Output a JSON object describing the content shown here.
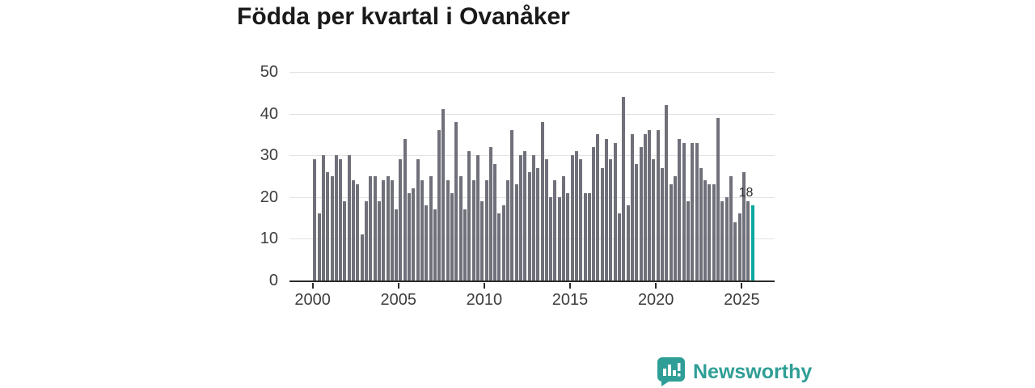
{
  "title": "Födda per kvartal i Ovanåker",
  "chart_data": {
    "type": "bar",
    "title": "Födda per kvartal i Ovanåker",
    "x_start_period": "2000 Q1",
    "x_end_period": "2025 Q3",
    "x_tick_labels": [
      "2000",
      "2005",
      "2010",
      "2015",
      "2020",
      "2025"
    ],
    "y_tick_labels": [
      "0",
      "10",
      "20",
      "30",
      "40",
      "50"
    ],
    "ylim": [
      0,
      50
    ],
    "grid": "horizontal",
    "legend": "none",
    "series": [
      {
        "name": "Födda per kvartal",
        "values": [
          29,
          16,
          30,
          26,
          25,
          30,
          29,
          19,
          30,
          24,
          23,
          11,
          19,
          25,
          25,
          19,
          24,
          25,
          24,
          17,
          29,
          34,
          21,
          22,
          29,
          24,
          18,
          25,
          17,
          36,
          41,
          24,
          21,
          38,
          25,
          17,
          31,
          24,
          30,
          19,
          24,
          32,
          28,
          16,
          18,
          24,
          36,
          23,
          30,
          31,
          26,
          30,
          27,
          38,
          29,
          20,
          24,
          20,
          25,
          21,
          30,
          31,
          29,
          21,
          21,
          32,
          35,
          27,
          34,
          29,
          33,
          16,
          44,
          18,
          35,
          28,
          32,
          35,
          36,
          29,
          36,
          27,
          42,
          23,
          25,
          34,
          33,
          19,
          33,
          33,
          27,
          24,
          23,
          23,
          39,
          19,
          20,
          25,
          14,
          16,
          26,
          19,
          18
        ]
      }
    ],
    "highlighted_last_bar": {
      "value": 18,
      "label": "18"
    }
  },
  "annotation": {
    "last_value_label": "18"
  },
  "colors": {
    "bar": "#70707a",
    "bar_highlight": "#0ba79f",
    "gridline": "#e2e2e6",
    "axis": "#2b2b2b",
    "axis_label": "#3d3d3d",
    "title": "#1a1a1a",
    "logo": "#2f9e96"
  },
  "logo": {
    "brand": "Newsworthy",
    "icon": "bar-chart-speech-bubble"
  }
}
